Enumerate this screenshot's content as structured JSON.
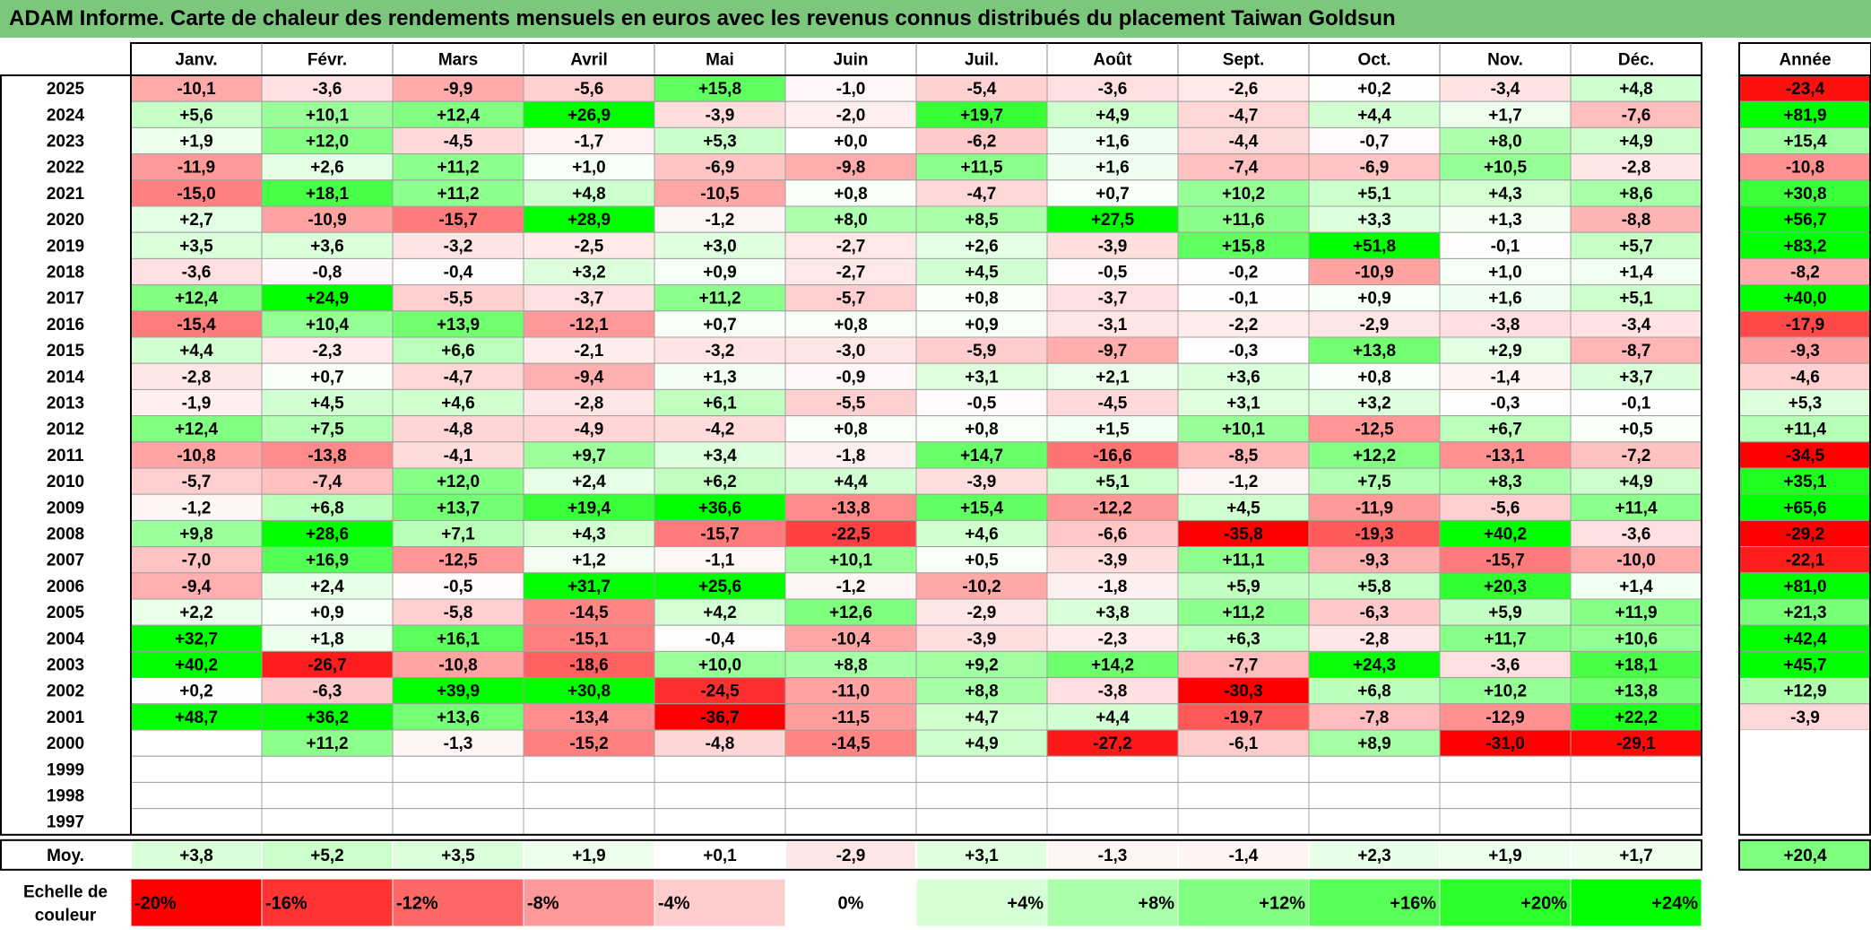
{
  "title": "ADAM Informe. Carte de chaleur des rendements mensuels en euros avec les revenus connus distribués du placement Taiwan Goldsun",
  "chart_data": {
    "type": "heatmap",
    "title": "ADAM Informe. Carte de chaleur des rendements mensuels en euros avec les revenus connus distribués du placement Taiwan Goldsun",
    "columns": [
      "Janv.",
      "Févr.",
      "Mars",
      "Avril",
      "Mai",
      "Juin",
      "Juil.",
      "Août",
      "Sept.",
      "Oct.",
      "Nov.",
      "Déc."
    ],
    "year_column_label": "Année",
    "rows": [
      {
        "year": "2025",
        "values": [
          "-10,1",
          "-3,6",
          "-9,9",
          "-5,6",
          "+15,8",
          "-1,0",
          "-5,4",
          "-3,6",
          "-2,6",
          "+0,2",
          "-3,4",
          "+4,8"
        ],
        "annual": "-23,4"
      },
      {
        "year": "2024",
        "values": [
          "+5,6",
          "+10,1",
          "+12,4",
          "+26,9",
          "-3,9",
          "-2,0",
          "+19,7",
          "+4,9",
          "-4,7",
          "+4,4",
          "+1,7",
          "-7,6"
        ],
        "annual": "+81,9"
      },
      {
        "year": "2023",
        "values": [
          "+1,9",
          "+12,0",
          "-4,5",
          "-1,7",
          "+5,3",
          "+0,0",
          "-6,2",
          "+1,6",
          "-4,4",
          "-0,7",
          "+8,0",
          "+4,9"
        ],
        "annual": "+15,4"
      },
      {
        "year": "2022",
        "values": [
          "-11,9",
          "+2,6",
          "+11,2",
          "+1,0",
          "-6,9",
          "-9,8",
          "+11,5",
          "+1,6",
          "-7,4",
          "-6,9",
          "+10,5",
          "-2,8"
        ],
        "annual": "-10,8"
      },
      {
        "year": "2021",
        "values": [
          "-15,0",
          "+18,1",
          "+11,2",
          "+4,8",
          "-10,5",
          "+0,8",
          "-4,7",
          "+0,7",
          "+10,2",
          "+5,1",
          "+4,3",
          "+8,6"
        ],
        "annual": "+30,8"
      },
      {
        "year": "2020",
        "values": [
          "+2,7",
          "-10,9",
          "-15,7",
          "+28,9",
          "-1,2",
          "+8,0",
          "+8,5",
          "+27,5",
          "+11,6",
          "+3,3",
          "+1,3",
          "-8,8"
        ],
        "annual": "+56,7"
      },
      {
        "year": "2019",
        "values": [
          "+3,5",
          "+3,6",
          "-3,2",
          "-2,5",
          "+3,0",
          "-2,7",
          "+2,6",
          "-3,9",
          "+15,8",
          "+51,8",
          "-0,1",
          "+5,7"
        ],
        "annual": "+83,2"
      },
      {
        "year": "2018",
        "values": [
          "-3,6",
          "-0,8",
          "-0,4",
          "+3,2",
          "+0,9",
          "-2,7",
          "+4,5",
          "-0,5",
          "-0,2",
          "-10,9",
          "+1,0",
          "+1,4"
        ],
        "annual": "-8,2"
      },
      {
        "year": "2017",
        "values": [
          "+12,4",
          "+24,9",
          "-5,5",
          "-3,7",
          "+11,2",
          "-5,7",
          "+0,8",
          "-3,7",
          "-0,1",
          "+0,9",
          "+1,6",
          "+5,1"
        ],
        "annual": "+40,0"
      },
      {
        "year": "2016",
        "values": [
          "-15,4",
          "+10,4",
          "+13,9",
          "-12,1",
          "+0,7",
          "+0,8",
          "+0,9",
          "-3,1",
          "-2,2",
          "-2,9",
          "-3,8",
          "-3,4"
        ],
        "annual": "-17,9"
      },
      {
        "year": "2015",
        "values": [
          "+4,4",
          "-2,3",
          "+6,6",
          "-2,1",
          "-3,2",
          "-3,0",
          "-5,9",
          "-9,7",
          "-0,3",
          "+13,8",
          "+2,9",
          "-8,7"
        ],
        "annual": "-9,3"
      },
      {
        "year": "2014",
        "values": [
          "-2,8",
          "+0,7",
          "-4,7",
          "-9,4",
          "+1,3",
          "-0,9",
          "+3,1",
          "+2,1",
          "+3,6",
          "+0,8",
          "-1,4",
          "+3,7"
        ],
        "annual": "-4,6"
      },
      {
        "year": "2013",
        "values": [
          "-1,9",
          "+4,5",
          "+4,6",
          "-2,8",
          "+6,1",
          "-5,5",
          "-0,5",
          "-4,5",
          "+3,1",
          "+3,2",
          "-0,3",
          "-0,1"
        ],
        "annual": "+5,3"
      },
      {
        "year": "2012",
        "values": [
          "+12,4",
          "+7,5",
          "-4,8",
          "-4,9",
          "-4,2",
          "+0,8",
          "+0,8",
          "+1,5",
          "+10,1",
          "-12,5",
          "+6,7",
          "+0,5"
        ],
        "annual": "+11,4"
      },
      {
        "year": "2011",
        "values": [
          "-10,8",
          "-13,8",
          "-4,1",
          "+9,7",
          "+3,4",
          "-1,8",
          "+14,7",
          "-16,6",
          "-8,5",
          "+12,2",
          "-13,1",
          "-7,2"
        ],
        "annual": "-34,5"
      },
      {
        "year": "2010",
        "values": [
          "-5,7",
          "-7,4",
          "+12,0",
          "+2,4",
          "+6,2",
          "+4,4",
          "-3,9",
          "+5,1",
          "-1,2",
          "+7,5",
          "+8,3",
          "+4,9"
        ],
        "annual": "+35,1"
      },
      {
        "year": "2009",
        "values": [
          "-1,2",
          "+6,8",
          "+13,7",
          "+19,4",
          "+36,6",
          "-13,8",
          "+15,4",
          "-12,2",
          "+4,5",
          "-11,9",
          "-5,6",
          "+11,4"
        ],
        "annual": "+65,6"
      },
      {
        "year": "2008",
        "values": [
          "+9,8",
          "+28,6",
          "+7,1",
          "+4,3",
          "-15,7",
          "-22,5",
          "+4,6",
          "-6,6",
          "-35,8",
          "-19,3",
          "+40,2",
          "-3,6"
        ],
        "annual": "-29,2"
      },
      {
        "year": "2007",
        "values": [
          "-7,0",
          "+16,9",
          "-12,5",
          "+1,2",
          "-1,1",
          "+10,1",
          "+0,5",
          "-3,9",
          "+11,1",
          "-9,3",
          "-15,7",
          "-10,0"
        ],
        "annual": "-22,1"
      },
      {
        "year": "2006",
        "values": [
          "-9,4",
          "+2,4",
          "-0,5",
          "+31,7",
          "+25,6",
          "-1,2",
          "-10,2",
          "-1,8",
          "+5,9",
          "+5,8",
          "+20,3",
          "+1,4"
        ],
        "annual": "+81,0"
      },
      {
        "year": "2005",
        "values": [
          "+2,2",
          "+0,9",
          "-5,8",
          "-14,5",
          "+4,2",
          "+12,6",
          "-2,9",
          "+3,8",
          "+11,2",
          "-6,3",
          "+5,9",
          "+11,9"
        ],
        "annual": "+21,3"
      },
      {
        "year": "2004",
        "values": [
          "+32,7",
          "+1,8",
          "+16,1",
          "-15,1",
          "-0,4",
          "-10,4",
          "-3,9",
          "-2,3",
          "+6,3",
          "-2,8",
          "+11,7",
          "+10,6"
        ],
        "annual": "+42,4"
      },
      {
        "year": "2003",
        "values": [
          "+40,2",
          "-26,7",
          "-10,8",
          "-18,6",
          "+10,0",
          "+8,8",
          "+9,2",
          "+14,2",
          "-7,7",
          "+24,3",
          "-3,6",
          "+18,1"
        ],
        "annual": "+45,7"
      },
      {
        "year": "2002",
        "values": [
          "+0,2",
          "-6,3",
          "+39,9",
          "+30,8",
          "-24,5",
          "-11,0",
          "+8,8",
          "-3,8",
          "-30,3",
          "+6,8",
          "+10,2",
          "+13,8"
        ],
        "annual": "+12,9"
      },
      {
        "year": "2001",
        "values": [
          "+48,7",
          "+36,2",
          "+13,6",
          "-13,4",
          "-36,7",
          "-11,5",
          "+4,7",
          "+4,4",
          "-19,7",
          "-7,8",
          "-12,9",
          "+22,2"
        ],
        "annual": "-3,9"
      },
      {
        "year": "2000",
        "values": [
          "",
          "+11,2",
          "-1,3",
          "-15,2",
          "-4,8",
          "-14,5",
          "+4,9",
          "-27,2",
          "-6,1",
          "+8,9",
          "-31,0",
          "-29,1"
        ],
        "annual": ""
      },
      {
        "year": "1999",
        "values": [
          "",
          "",
          "",
          "",
          "",
          "",
          "",
          "",
          "",
          "",
          "",
          ""
        ],
        "annual": ""
      },
      {
        "year": "1998",
        "values": [
          "",
          "",
          "",
          "",
          "",
          "",
          "",
          "",
          "",
          "",
          "",
          ""
        ],
        "annual": ""
      },
      {
        "year": "1997",
        "values": [
          "",
          "",
          "",
          "",
          "",
          "",
          "",
          "",
          "",
          "",
          "",
          ""
        ],
        "annual": ""
      }
    ],
    "average": {
      "label": "Moy.",
      "values": [
        "+3,8",
        "+5,2",
        "+3,5",
        "+1,9",
        "+0,1",
        "-2,9",
        "+3,1",
        "-1,3",
        "-1,4",
        "+2,3",
        "+1,9",
        "+1,7"
      ],
      "annual": "+20,4"
    },
    "scale": {
      "label_lines": [
        "Echelle de",
        "couleur"
      ],
      "steps": [
        "-20%",
        "-16%",
        "-12%",
        "-8%",
        "-4%",
        "0%",
        "+4%",
        "+8%",
        "+12%",
        "+16%",
        "+20%",
        "+24%"
      ],
      "step_values": [
        -20,
        -16,
        -12,
        -8,
        -4,
        0,
        4,
        8,
        12,
        16,
        20,
        24
      ]
    },
    "colors": {
      "negative_max": "#ff0000",
      "neutral": "#ffffff",
      "positive_max": "#00ff00",
      "title_bar": "#7bc77b"
    }
  }
}
